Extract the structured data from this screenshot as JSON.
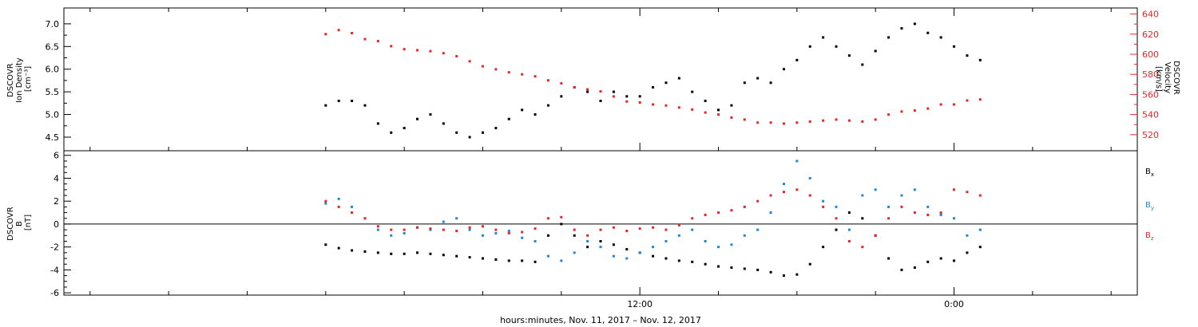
{
  "chart_data": [
    {
      "type": "scatter",
      "panel": "top",
      "left_axis": {
        "label_lines": [
          "DSCOVR",
          "Ion Density",
          "[cm⁻³]"
        ],
        "ylim": [
          4.2,
          7.35
        ],
        "ticks": [
          4.5,
          5.0,
          5.5,
          6.0,
          6.5,
          7.0
        ],
        "tick_labels": [
          "4.5",
          "5.0",
          "5.5",
          "6.0",
          "6.5",
          "7.0"
        ]
      },
      "right_axis": {
        "label_lines": [
          "DSCOVR",
          "Velocity",
          "[km/s]"
        ],
        "ylim": [
          504,
          646
        ],
        "ticks": [
          520,
          540,
          560,
          580,
          600,
          620,
          640
        ],
        "tick_labels": [
          "520",
          "540",
          "560",
          "580",
          "600",
          "620",
          "640"
        ],
        "color": "#e8262a"
      },
      "series": [
        {
          "axis": "left",
          "color": "#000000",
          "x": [
            0,
            0.5,
            1,
            1.5,
            2,
            2.5,
            3,
            3.5,
            4,
            4.5,
            5,
            5.5,
            6,
            6.5,
            7,
            7.5,
            8,
            8.5,
            9,
            9.5,
            10,
            10.5,
            11,
            11.5,
            12,
            12.5,
            13,
            13.5,
            14,
            14.5,
            15,
            15.5,
            16,
            16.5,
            17,
            17.5,
            18,
            18.5,
            19,
            19.5,
            20,
            20.5,
            21,
            21.5,
            22,
            22.5,
            23,
            23.5,
            24,
            24.5,
            25
          ],
          "y": [
            5.2,
            5.3,
            5.3,
            5.2,
            4.8,
            4.6,
            4.7,
            4.9,
            5.0,
            4.8,
            4.6,
            4.5,
            4.6,
            4.7,
            4.9,
            5.1,
            5.0,
            5.2,
            5.4,
            5.6,
            5.5,
            5.3,
            5.5,
            5.4,
            5.4,
            5.6,
            5.7,
            5.8,
            5.5,
            5.3,
            5.1,
            5.2,
            5.7,
            5.8,
            5.7,
            6.0,
            6.2,
            6.5,
            6.7,
            6.5,
            6.3,
            6.1,
            6.4,
            6.7,
            6.9,
            7.0,
            6.8,
            6.7,
            6.5,
            6.3,
            6.2
          ]
        },
        {
          "axis": "right",
          "color": "#e8262a",
          "x": [
            0,
            0.5,
            1,
            1.5,
            2,
            2.5,
            3,
            3.5,
            4,
            4.5,
            5,
            5.5,
            6,
            6.5,
            7,
            7.5,
            8,
            8.5,
            9,
            9.5,
            10,
            10.5,
            11,
            11.5,
            12,
            12.5,
            13,
            13.5,
            14,
            14.5,
            15,
            15.5,
            16,
            16.5,
            17,
            17.5,
            18,
            18.5,
            19,
            19.5,
            20,
            20.5,
            21,
            21.5,
            22,
            22.5,
            23,
            23.5,
            24,
            24.5,
            25
          ],
          "y": [
            620,
            624,
            621,
            615,
            613,
            608,
            605,
            604,
            603,
            601,
            598,
            593,
            588,
            585,
            582,
            580,
            578,
            574,
            571,
            567,
            565,
            563,
            558,
            553,
            552,
            550,
            549,
            547,
            545,
            542,
            540,
            537,
            535,
            532,
            532,
            531,
            532,
            533,
            534,
            535,
            534,
            533,
            535,
            540,
            543,
            544,
            546,
            550,
            550,
            554,
            555
          ]
        }
      ]
    },
    {
      "type": "scatter",
      "panel": "bottom",
      "left_axis": {
        "label_lines": [
          "DSCOVR",
          "B",
          "[nT]"
        ],
        "ylim": [
          -6.2,
          6.4
        ],
        "ticks": [
          -6,
          -4,
          -2,
          0,
          2,
          4,
          6
        ],
        "tick_labels": [
          "-6",
          "-4",
          "-2",
          "0",
          "2",
          "4",
          "6"
        ]
      },
      "series": [
        {
          "name": "Bx",
          "color": "#000000",
          "x": [
            0,
            0.5,
            1,
            1.5,
            2,
            2.5,
            3,
            3.5,
            4,
            4.5,
            5,
            5.5,
            6,
            6.5,
            7,
            7.5,
            8,
            8.5,
            9,
            9.5,
            10,
            10.5,
            11,
            11.5,
            12,
            12.5,
            13,
            13.5,
            14,
            14.5,
            15,
            15.5,
            16,
            16.5,
            17,
            17.5,
            18,
            18.5,
            19,
            19.5,
            20,
            20.5,
            21,
            21.5,
            22,
            22.5,
            23,
            23.5,
            24,
            24.5,
            25
          ],
          "y": [
            -1.8,
            -2.1,
            -2.3,
            -2.4,
            -2.5,
            -2.6,
            -2.6,
            -2.5,
            -2.6,
            -2.7,
            -2.8,
            -2.9,
            -3.0,
            -3.1,
            -3.2,
            -3.2,
            -3.3,
            -1.0,
            0.0,
            -1.0,
            -2.0,
            -1.5,
            -1.8,
            -2.2,
            -2.5,
            -2.8,
            -3.0,
            -3.2,
            -3.3,
            -3.5,
            -3.7,
            -3.8,
            -3.9,
            -4.0,
            -4.2,
            -4.5,
            -4.4,
            -3.5,
            -2.0,
            -0.5,
            1.0,
            0.5,
            -1.0,
            -3.0,
            -4.0,
            -3.8,
            -3.3,
            -3.0,
            -3.2,
            -2.5,
            -2.0
          ]
        },
        {
          "name": "By",
          "color": "#1f88d6",
          "x": [
            0,
            0.5,
            1,
            1.5,
            2,
            2.5,
            3,
            3.5,
            4,
            4.5,
            5,
            5.5,
            6,
            6.5,
            7,
            7.5,
            8,
            8.5,
            9,
            9.5,
            10,
            10.5,
            11,
            11.5,
            12,
            12.5,
            13,
            13.5,
            14,
            14.5,
            15,
            15.5,
            16,
            16.5,
            17,
            17.5,
            18,
            18.5,
            19,
            19.5,
            20,
            20.5,
            21,
            21.5,
            22,
            22.5,
            23,
            23.5,
            24,
            24.5,
            25
          ],
          "y": [
            1.8,
            2.2,
            1.5,
            0.5,
            -0.5,
            -1.0,
            -0.8,
            -0.3,
            -0.5,
            0.2,
            0.5,
            -0.5,
            -1.0,
            -0.8,
            -0.6,
            -1.2,
            -1.5,
            -2.8,
            -3.2,
            -2.5,
            -1.5,
            -2.0,
            -2.8,
            -3.0,
            -2.5,
            -2.0,
            -1.5,
            -1.0,
            -0.5,
            -1.5,
            -2.0,
            -1.8,
            -1.0,
            -0.5,
            1.0,
            3.5,
            5.5,
            4.0,
            2.0,
            1.5,
            -0.5,
            2.5,
            3.0,
            1.5,
            2.5,
            3.0,
            1.5,
            0.8,
            0.5,
            -1.0,
            -0.5
          ]
        },
        {
          "name": "Bz",
          "color": "#e8262a",
          "x": [
            0,
            0.5,
            1,
            1.5,
            2,
            2.5,
            3,
            3.5,
            4,
            4.5,
            5,
            5.5,
            6,
            6.5,
            7,
            7.5,
            8,
            8.5,
            9,
            9.5,
            10,
            10.5,
            11,
            11.5,
            12,
            12.5,
            13,
            13.5,
            14,
            14.5,
            15,
            15.5,
            16,
            16.5,
            17,
            17.5,
            18,
            18.5,
            19,
            19.5,
            20,
            20.5,
            21,
            21.5,
            22,
            22.5,
            23,
            23.5,
            24,
            24.5,
            25
          ],
          "y": [
            2.0,
            1.5,
            1.0,
            0.5,
            -0.2,
            -0.5,
            -0.5,
            -0.3,
            -0.4,
            -0.5,
            -0.6,
            -0.3,
            -0.2,
            -0.5,
            -0.8,
            -0.7,
            -0.4,
            0.5,
            0.6,
            -0.5,
            -1.0,
            -0.5,
            -0.3,
            -0.6,
            -0.4,
            -0.3,
            -0.5,
            -0.1,
            0.5,
            0.8,
            1.0,
            1.2,
            1.5,
            2.0,
            2.5,
            2.8,
            3.0,
            2.5,
            1.5,
            0.5,
            -1.5,
            -2.0,
            -1.0,
            0.5,
            1.5,
            1.0,
            0.8,
            1.0,
            3.0,
            2.8,
            2.5
          ]
        }
      ]
    }
  ],
  "x_axis": {
    "xlim": [
      -10,
      31
    ],
    "major_ticks": [
      12,
      24
    ],
    "major_tick_labels": [
      "12:00",
      "0:00"
    ],
    "minor_ticks": [
      -9,
      -6,
      -3,
      0,
      3,
      6,
      9,
      15,
      18,
      21,
      27,
      30
    ],
    "title": "hours:minutes, Nov. 11, 2017 – Nov. 12, 2017"
  },
  "legend": {
    "items": [
      {
        "base": "B",
        "sub": "x",
        "color": "#000000"
      },
      {
        "base": "B",
        "sub": "y",
        "color": "#1f88d6"
      },
      {
        "base": "B",
        "sub": "z",
        "color": "#e8262a"
      }
    ]
  }
}
